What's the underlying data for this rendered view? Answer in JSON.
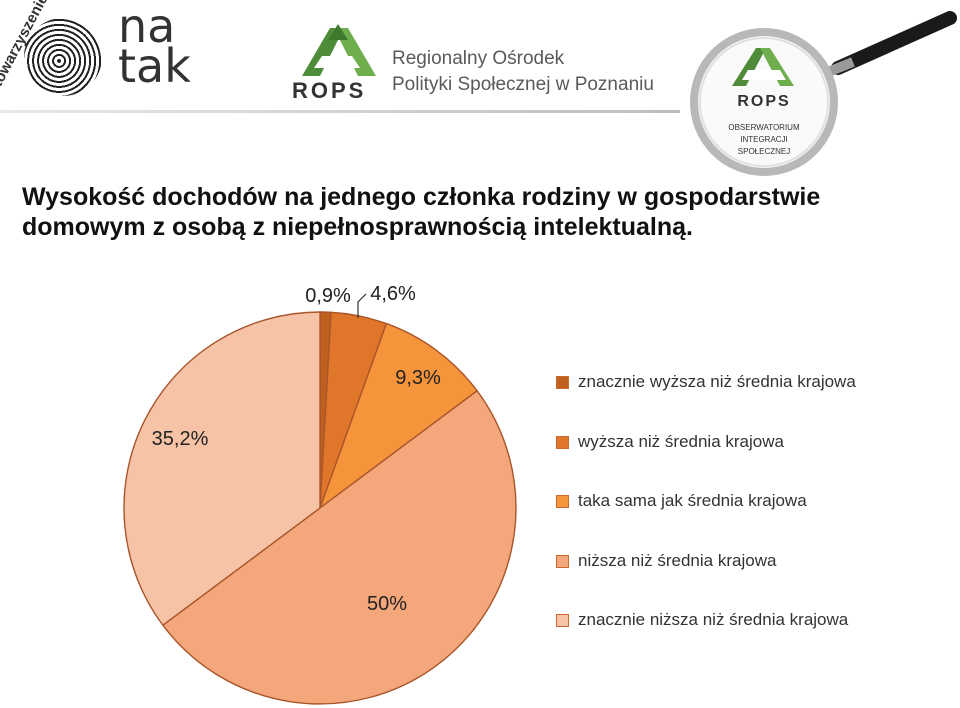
{
  "header": {
    "natak_arc_text": "stowarzyszenie",
    "natak_word_1": "na",
    "natak_word_2": "tak",
    "rops_mark": "ROPS",
    "rops_name_line1": "Regionalny Ośrodek",
    "rops_name_line2": "Polityki Społecznej w Poznaniu",
    "observatory_mark": "ROPS",
    "observatory_line1": "OBSERWATORIUM",
    "observatory_line2": "INTEGRACJI",
    "observatory_line3": "SPOŁECZNEJ"
  },
  "chart_data": {
    "type": "pie",
    "title_line1": "Wysokość dochodów na jednego członka rodziny w gospodarstwie",
    "title_line2": "domowym z osobą z niepełnosprawnością intelektualną.",
    "categories": [
      "znacznie wyższa niż średnia krajowa",
      "wyższa niż średnia krajowa",
      "taka sama jak średnia krajowa",
      "niższa niż średnia krajowa",
      "znacznie niższa niż średnia krajowa"
    ],
    "values": [
      0.9,
      4.6,
      9.3,
      50,
      35.2
    ],
    "data_labels": [
      "0,9%",
      "4,6%",
      "9,3%",
      "50%",
      "35,2%"
    ],
    "colors": [
      "#c0601f",
      "#e0762a",
      "#f6943c",
      "#f5a77c",
      "#f7c3a6"
    ],
    "legend_position": "right"
  }
}
